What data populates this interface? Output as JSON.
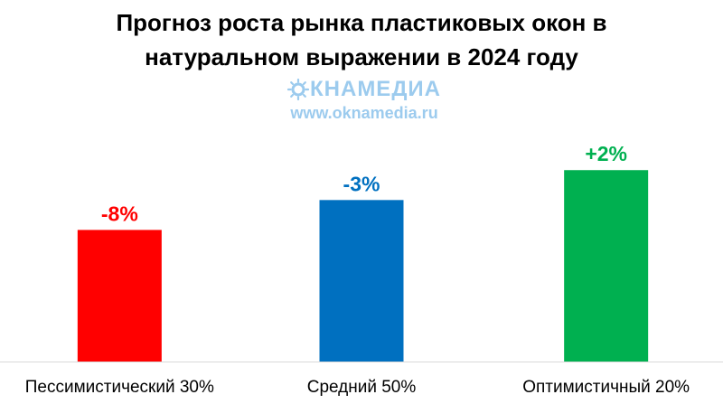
{
  "title_line1": "Прогноз роста рынка пластиковых окон в",
  "title_line2": "натуральном выражении в 2024 году",
  "watermark": {
    "logo_text": "КНАМЕДИА",
    "url": "www.oknamedia.ru"
  },
  "chart_data": {
    "type": "bar",
    "title": "Прогноз роста рынка пластиковых окон в натуральном выражении в 2024 году",
    "categories": [
      "Пессимистический 30%",
      "Средний 50%",
      "Оптимистичный 20%"
    ],
    "values": [
      -8,
      -3,
      2
    ],
    "labels": [
      "-8%",
      "-3%",
      "+2%"
    ],
    "colors": [
      "#ff0000",
      "#0070c0",
      "#00b050"
    ],
    "ylim": [
      -30,
      4
    ],
    "grid": false,
    "legend": "none"
  }
}
